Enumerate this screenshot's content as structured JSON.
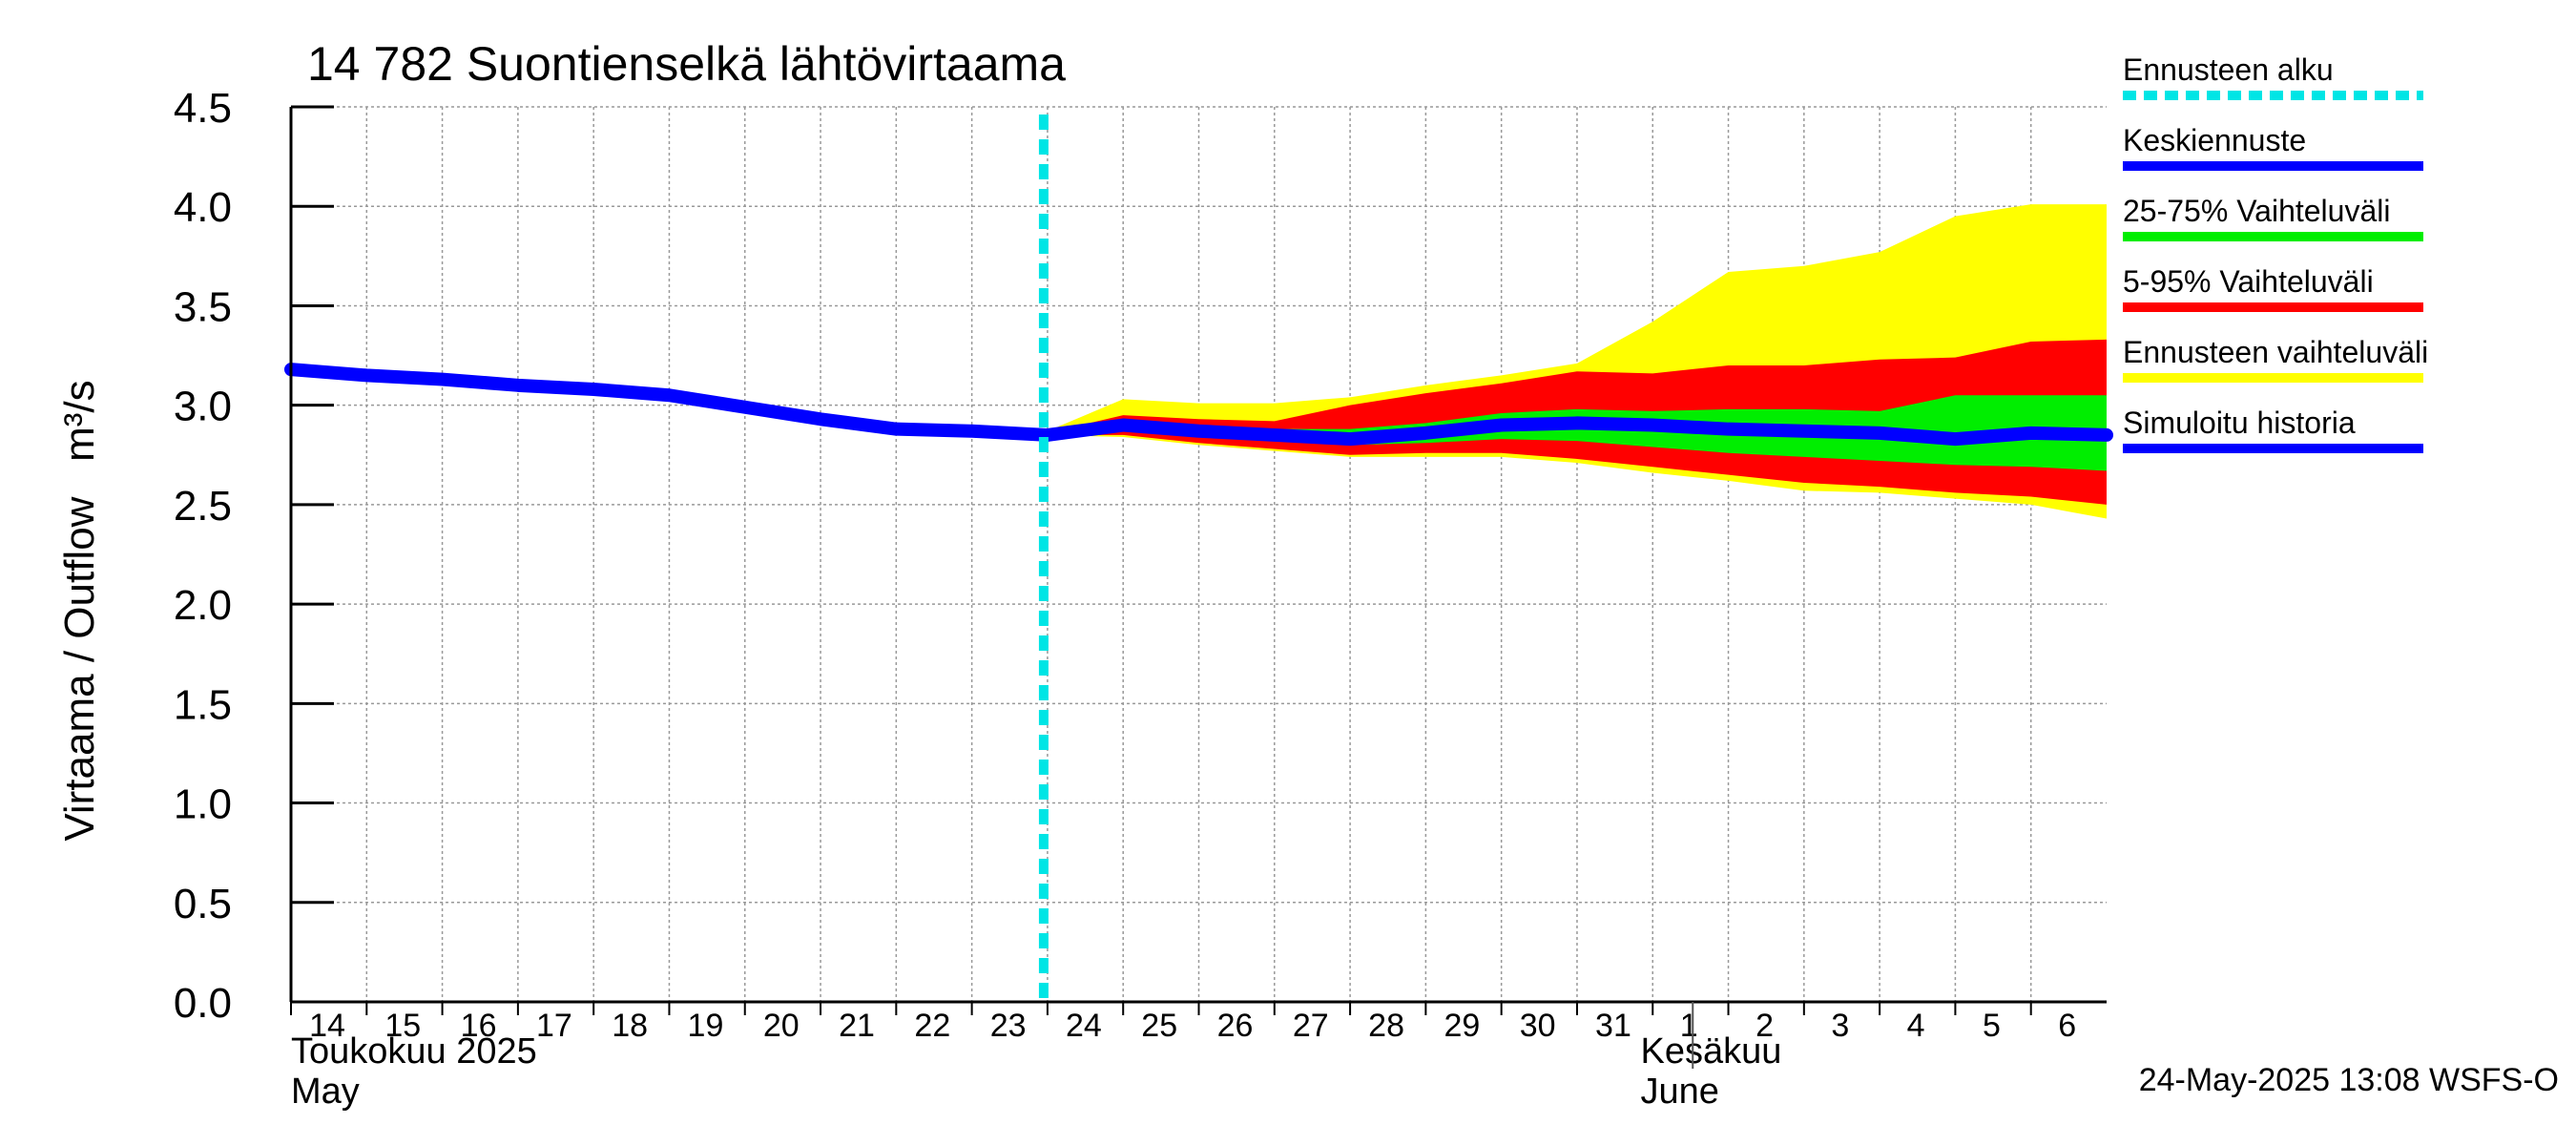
{
  "chart_data": {
    "type": "area",
    "title": "14 782 Suontienselkä lähtövirtaama",
    "ylabel": "Virtaama / Outflow   m³/s",
    "ylim": [
      0,
      4.5
    ],
    "yticks": [
      "0.0",
      "0.5",
      "1.0",
      "1.5",
      "2.0",
      "2.5",
      "3.0",
      "3.5",
      "4.0",
      "4.5"
    ],
    "x_range": [
      "2025-05-14",
      "2025-06-07"
    ],
    "forecast_start": "2025-05-24",
    "grid": true,
    "legend_position": "right",
    "day_labels": [
      "14",
      "15",
      "16",
      "17",
      "18",
      "19",
      "20",
      "21",
      "22",
      "23",
      "24",
      "25",
      "26",
      "27",
      "28",
      "29",
      "30",
      "31",
      "1",
      "2",
      "3",
      "4",
      "5",
      "6"
    ],
    "month_labels": [
      {
        "line1": "Toukokuu  2025",
        "line2": "May",
        "date": "2025-05-14"
      },
      {
        "line1": "Kesäkuu",
        "line2": "June",
        "date": "2025-06-02"
      }
    ],
    "timestamp": "24-May-2025 13:08 WSFS-O",
    "legend": [
      {
        "label": "Ennusteen alku",
        "color": "#00e5e5",
        "style": "dashed"
      },
      {
        "label": "Keskiennuste",
        "color": "#0000ff",
        "style": "solid"
      },
      {
        "label": "25-75% Vaihteluväli",
        "color": "#00ee00",
        "style": "solid"
      },
      {
        "label": "5-95% Vaihteluväli",
        "color": "#ff0000",
        "style": "solid"
      },
      {
        "label": "Ennusteen vaihteluväli",
        "color": "#ffff00",
        "style": "solid"
      },
      {
        "label": "Simuloitu historia",
        "color": "#0000ff",
        "style": "solid"
      }
    ],
    "history": {
      "x": [
        "2025-05-14",
        "2025-05-15",
        "2025-05-16",
        "2025-05-17",
        "2025-05-18",
        "2025-05-19",
        "2025-05-20",
        "2025-05-21",
        "2025-05-22",
        "2025-05-23",
        "2025-05-24"
      ],
      "y": [
        3.18,
        3.15,
        3.13,
        3.1,
        3.08,
        3.05,
        2.99,
        2.93,
        2.88,
        2.87,
        2.85
      ]
    },
    "forecast": {
      "x": [
        "2025-05-24",
        "2025-05-25",
        "2025-05-26",
        "2025-05-27",
        "2025-05-28",
        "2025-05-29",
        "2025-05-30",
        "2025-05-31",
        "2025-06-01",
        "2025-06-02",
        "2025-06-03",
        "2025-06-04",
        "2025-06-05",
        "2025-06-06",
        "2025-06-07"
      ],
      "min": [
        2.85,
        2.84,
        2.8,
        2.77,
        2.74,
        2.74,
        2.74,
        2.71,
        2.66,
        2.62,
        2.57,
        2.56,
        2.53,
        2.5,
        2.43
      ],
      "p5": [
        2.85,
        2.85,
        2.81,
        2.78,
        2.75,
        2.76,
        2.76,
        2.73,
        2.69,
        2.65,
        2.61,
        2.59,
        2.56,
        2.54,
        2.5
      ],
      "p25": [
        2.85,
        2.88,
        2.84,
        2.82,
        2.8,
        2.81,
        2.83,
        2.82,
        2.79,
        2.76,
        2.74,
        2.72,
        2.7,
        2.69,
        2.67
      ],
      "median": [
        2.85,
        2.9,
        2.87,
        2.85,
        2.83,
        2.86,
        2.9,
        2.91,
        2.9,
        2.88,
        2.87,
        2.86,
        2.83,
        2.86,
        2.85
      ],
      "p75": [
        2.85,
        2.91,
        2.89,
        2.88,
        2.88,
        2.91,
        2.96,
        2.98,
        2.97,
        2.98,
        2.98,
        2.97,
        3.05,
        3.05,
        3.05
      ],
      "p95": [
        2.86,
        2.95,
        2.93,
        2.92,
        3.0,
        3.06,
        3.11,
        3.17,
        3.16,
        3.2,
        3.2,
        3.23,
        3.24,
        3.32,
        3.33
      ],
      "max": [
        2.87,
        3.03,
        3.01,
        3.01,
        3.04,
        3.1,
        3.15,
        3.21,
        3.42,
        3.67,
        3.7,
        3.77,
        3.95,
        4.01,
        4.01
      ]
    }
  }
}
